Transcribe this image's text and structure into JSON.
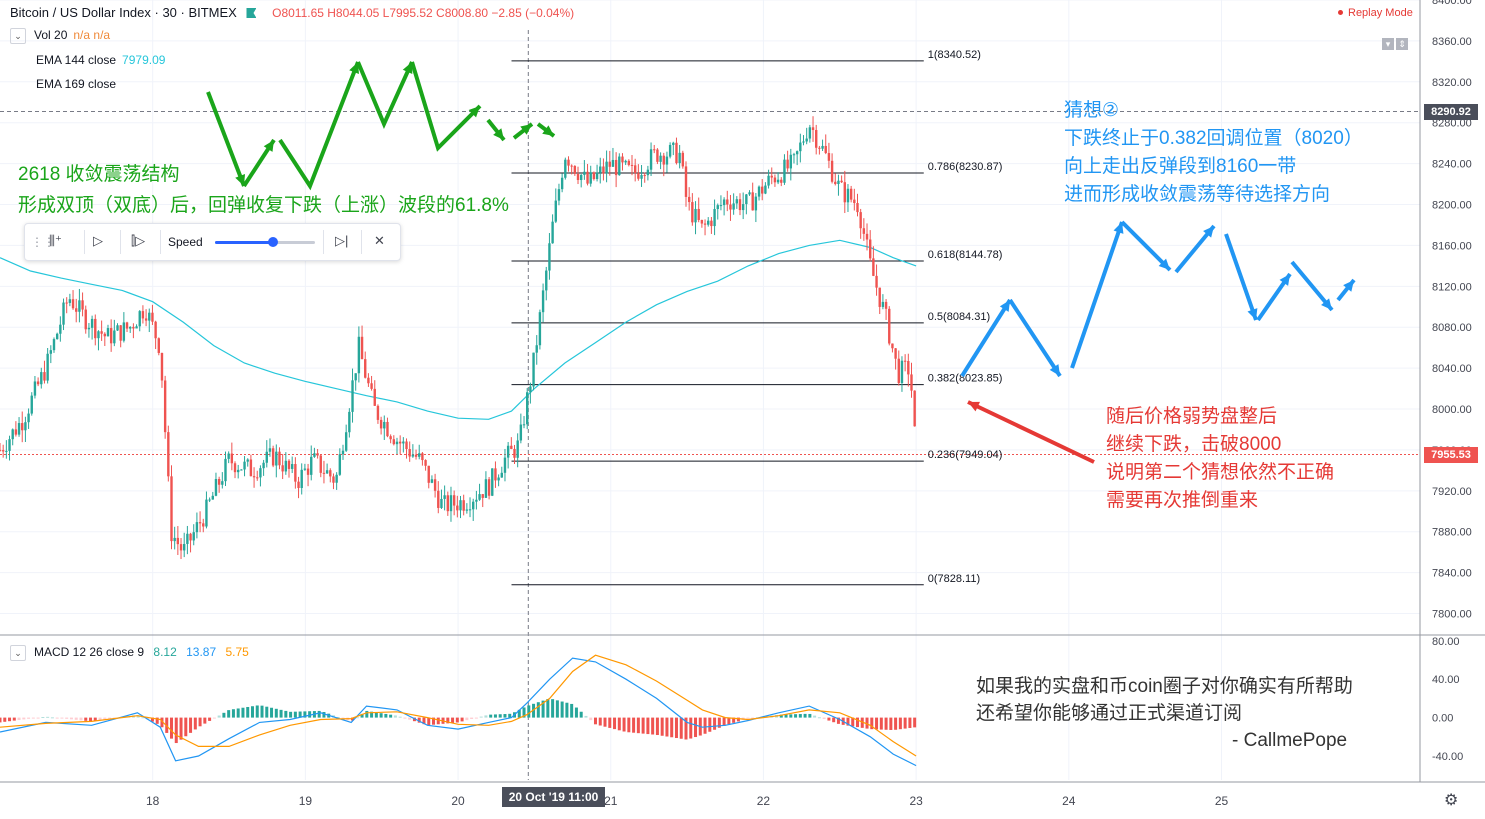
{
  "header": {
    "symbol": "Bitcoin / US Dollar Index · 30 · BITMEX",
    "ohlc": "O8011.65  H8044.05  L7995.52  C8008.80  −2.85 (−0.04%)",
    "replay_label": "Replay Mode"
  },
  "legend": {
    "vol_name": "Vol 20",
    "vol_value": "n/a  n/a",
    "ema144_name": "EMA 144 close",
    "ema144_value": "7979.09",
    "ema169_name": "EMA 169 close",
    "macd_name": "MACD 12 26 close 9",
    "macd_v1": "8.12",
    "macd_v2": "13.87",
    "macd_v3": "5.75"
  },
  "toolbar": {
    "speed_label": "Speed",
    "speed_value": 0.58
  },
  "annotations": {
    "green_line1": "2618 收敛震荡结构",
    "green_line2": "形成双顶（双底）后，回弹收复下跌（上涨）波段的61.8%",
    "blue_line1": "猜想②",
    "blue_line2": "下跌终止于0.382回调位置（8020）",
    "blue_line3": "向上走出反弹段到8160一带",
    "blue_line4": "进而形成收敛震荡等待选择方向",
    "red_line1": "随后价格弱势盘整后",
    "red_line2": "继续下跌，击破8000",
    "red_line3": "说明第二个猜想依然不正确",
    "red_line4": "需要再次推倒重来",
    "note_line1": "如果我的实盘和币coin圈子对你确实有所帮助",
    "note_line2": "还希望你能够通过正式渠道订阅",
    "note_line3": "-  CallmePope"
  },
  "price_tags": {
    "crosshair": "8290.92",
    "last": "7955.53"
  },
  "x_highlight": "20 Oct '19    11:00",
  "colors": {
    "up": "#26a69a",
    "down": "#ef5350",
    "ema144": "#26c6da",
    "macd": "#2196f3",
    "signal": "#ff9800",
    "green_annotation": "#1aa51a",
    "blue_annotation": "#2196f3",
    "red_annotation": "#e53935"
  },
  "chart_data": {
    "type": "candlestick",
    "price_axis": {
      "ylim": [
        7780,
        8400
      ],
      "ticks": [
        "8400.00",
        "8360.00",
        "8320.00",
        "8280.00",
        "8240.00",
        "8200.00",
        "8160.00",
        "8120.00",
        "8080.00",
        "8040.00",
        "8000.00",
        "7960.00",
        "7920.00",
        "7880.00",
        "7840.00",
        "7800.00"
      ]
    },
    "macd_axis": {
      "ylim": [
        -65,
        85
      ],
      "ticks": [
        "80.00",
        "40.00",
        "0.00",
        "-40.00"
      ]
    },
    "x_axis": {
      "day_labels": [
        "18",
        "19",
        "20",
        "21",
        "22",
        "23",
        "24",
        "25"
      ],
      "day_positions": [
        18,
        19,
        20,
        21,
        22,
        23,
        24,
        25
      ],
      "xlim": [
        17.0,
        26.3
      ]
    },
    "fibonacci": [
      {
        "label": "1(8340.52)",
        "value": 8340.52
      },
      {
        "label": "0.786(8230.87)",
        "value": 8230.87
      },
      {
        "label": "0.618(8144.78)",
        "value": 8144.78
      },
      {
        "label": "0.5(8084.31)",
        "value": 8084.31
      },
      {
        "label": "0.382(8023.85)",
        "value": 8023.85
      },
      {
        "label": "0.236(7949.04)",
        "value": 7949.04
      },
      {
        "label": "0(7828.11)",
        "value": 7828.11
      }
    ],
    "fib_range": [
      20.35,
      23.05
    ],
    "crosshair": {
      "time": 20.46,
      "price": 8290.92
    },
    "last_price": 7955.53,
    "price_path": [
      [
        17.0,
        7960
      ],
      [
        17.15,
        7990
      ],
      [
        17.3,
        8040
      ],
      [
        17.45,
        8110
      ],
      [
        17.55,
        8090
      ],
      [
        17.7,
        8070
      ],
      [
        17.85,
        8080
      ],
      [
        17.95,
        8100
      ],
      [
        18.05,
        8060
      ],
      [
        18.12,
        7880
      ],
      [
        18.2,
        7860
      ],
      [
        18.35,
        7900
      ],
      [
        18.5,
        7950
      ],
      [
        18.65,
        7940
      ],
      [
        18.8,
        7955
      ],
      [
        18.95,
        7930
      ],
      [
        19.05,
        7950
      ],
      [
        19.2,
        7930
      ],
      [
        19.35,
        8060
      ],
      [
        19.45,
        8000
      ],
      [
        19.6,
        7970
      ],
      [
        19.75,
        7950
      ],
      [
        19.9,
        7905
      ],
      [
        20.05,
        7910
      ],
      [
        20.2,
        7925
      ],
      [
        20.3,
        7950
      ],
      [
        20.4,
        7965
      ],
      [
        20.5,
        8050
      ],
      [
        20.62,
        8180
      ],
      [
        20.7,
        8250
      ],
      [
        20.85,
        8220
      ],
      [
        21.0,
        8240
      ],
      [
        21.15,
        8230
      ],
      [
        21.3,
        8250
      ],
      [
        21.45,
        8250
      ],
      [
        21.5,
        8200
      ],
      [
        21.6,
        8175
      ],
      [
        21.75,
        8205
      ],
      [
        21.9,
        8200
      ],
      [
        22.05,
        8225
      ],
      [
        22.2,
        8240
      ],
      [
        22.3,
        8280
      ],
      [
        22.4,
        8250
      ],
      [
        22.5,
        8215
      ],
      [
        22.62,
        8200
      ],
      [
        22.7,
        8140
      ],
      [
        22.8,
        8090
      ],
      [
        22.88,
        8035
      ],
      [
        22.96,
        8040
      ],
      [
        23.0,
        7955
      ]
    ],
    "ema144": [
      [
        17.0,
        8148
      ],
      [
        17.2,
        8135
      ],
      [
        17.4,
        8128
      ],
      [
        17.6,
        8122
      ],
      [
        17.8,
        8116
      ],
      [
        18.0,
        8105
      ],
      [
        18.2,
        8085
      ],
      [
        18.4,
        8062
      ],
      [
        18.6,
        8045
      ],
      [
        18.8,
        8035
      ],
      [
        19.0,
        8027
      ],
      [
        19.2,
        8020
      ],
      [
        19.4,
        8013
      ],
      [
        19.6,
        8007
      ],
      [
        19.8,
        7998
      ],
      [
        20.0,
        7991
      ],
      [
        20.2,
        7990
      ],
      [
        20.35,
        7998
      ],
      [
        20.5,
        8020
      ],
      [
        20.7,
        8045
      ],
      [
        20.9,
        8065
      ],
      [
        21.1,
        8085
      ],
      [
        21.3,
        8102
      ],
      [
        21.5,
        8115
      ],
      [
        21.7,
        8125
      ],
      [
        21.9,
        8140
      ],
      [
        22.1,
        8152
      ],
      [
        22.3,
        8160
      ],
      [
        22.5,
        8165
      ],
      [
        22.7,
        8158
      ],
      [
        22.85,
        8148
      ],
      [
        23.0,
        8140
      ]
    ],
    "macd_line": [
      [
        17.0,
        -15
      ],
      [
        17.3,
        -5
      ],
      [
        17.6,
        -8
      ],
      [
        17.9,
        5
      ],
      [
        18.05,
        -10
      ],
      [
        18.15,
        -45
      ],
      [
        18.3,
        -40
      ],
      [
        18.5,
        -22
      ],
      [
        18.7,
        -5
      ],
      [
        18.9,
        -2
      ],
      [
        19.1,
        5
      ],
      [
        19.3,
        -5
      ],
      [
        19.4,
        12
      ],
      [
        19.6,
        8
      ],
      [
        19.8,
        -8
      ],
      [
        20.0,
        -12
      ],
      [
        20.2,
        -5
      ],
      [
        20.35,
        0
      ],
      [
        20.45,
        15
      ],
      [
        20.6,
        40
      ],
      [
        20.75,
        62
      ],
      [
        20.9,
        58
      ],
      [
        21.1,
        40
      ],
      [
        21.3,
        20
      ],
      [
        21.5,
        -5
      ],
      [
        21.6,
        -10
      ],
      [
        21.75,
        -8
      ],
      [
        21.9,
        -3
      ],
      [
        22.1,
        5
      ],
      [
        22.3,
        12
      ],
      [
        22.5,
        -2
      ],
      [
        22.7,
        -20
      ],
      [
        22.85,
        -38
      ],
      [
        23.0,
        -50
      ]
    ],
    "signal_line": [
      [
        17.0,
        -10
      ],
      [
        17.3,
        -6
      ],
      [
        17.6,
        -4
      ],
      [
        17.9,
        2
      ],
      [
        18.05,
        -2
      ],
      [
        18.15,
        -18
      ],
      [
        18.3,
        -30
      ],
      [
        18.5,
        -30
      ],
      [
        18.7,
        -18
      ],
      [
        18.9,
        -8
      ],
      [
        19.1,
        -2
      ],
      [
        19.3,
        -1
      ],
      [
        19.4,
        5
      ],
      [
        19.6,
        6
      ],
      [
        19.8,
        0
      ],
      [
        20.0,
        -7
      ],
      [
        20.2,
        -8
      ],
      [
        20.35,
        -4
      ],
      [
        20.45,
        3
      ],
      [
        20.6,
        20
      ],
      [
        20.75,
        48
      ],
      [
        20.9,
        65
      ],
      [
        21.1,
        55
      ],
      [
        21.3,
        38
      ],
      [
        21.5,
        18
      ],
      [
        21.6,
        8
      ],
      [
        21.75,
        0
      ],
      [
        21.9,
        -2
      ],
      [
        22.1,
        2
      ],
      [
        22.3,
        8
      ],
      [
        22.5,
        5
      ],
      [
        22.7,
        -8
      ],
      [
        22.85,
        -25
      ],
      [
        23.0,
        -40
      ]
    ]
  }
}
